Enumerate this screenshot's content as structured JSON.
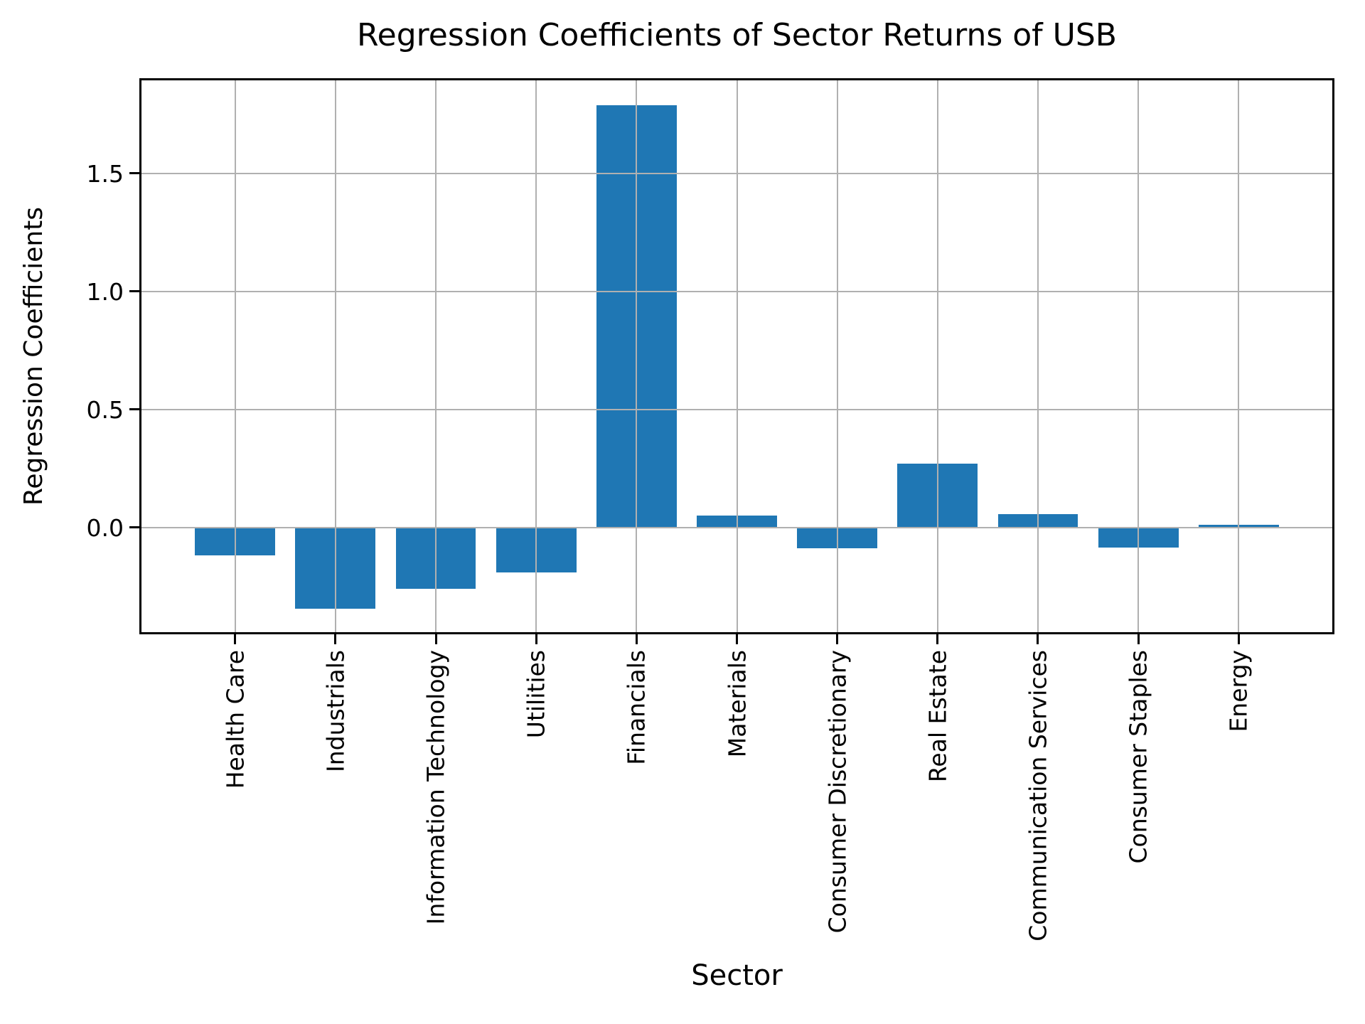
{
  "chart_data": {
    "type": "bar",
    "title": "Regression Coefficients of Sector Returns of USB",
    "xlabel": "Sector",
    "ylabel": "Regression Coefficients",
    "categories": [
      "Health Care",
      "Industrials",
      "Information Technology",
      "Utilities",
      "Financials",
      "Materials",
      "Consumer Discretionary",
      "Real Estate",
      "Communication Services",
      "Consumer Staples",
      "Energy"
    ],
    "values": [
      -0.12,
      -0.345,
      -0.26,
      -0.19,
      1.79,
      0.05,
      -0.09,
      0.27,
      0.055,
      -0.085,
      0.01
    ],
    "yticks": [
      0.0,
      0.5,
      1.0,
      1.5
    ],
    "ytick_labels": [
      "0.0",
      "0.5",
      "1.0",
      "1.5"
    ],
    "ylim": [
      -0.447,
      1.897
    ],
    "grid": true,
    "grid_on_top_of_bars": true,
    "legend_position": "none",
    "bar_color": "#1f77b4",
    "grid_color": "#b0b0b0",
    "axis_color": "#000000",
    "background_color": "#ffffff",
    "bar_relative_width": 0.8
  }
}
